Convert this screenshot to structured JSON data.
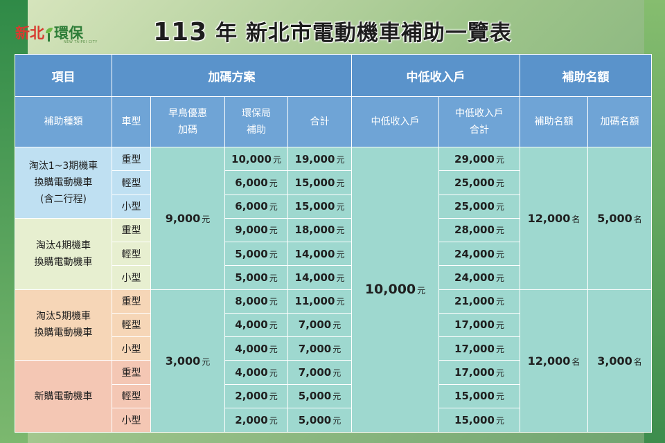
{
  "logo": {
    "part1": "新北",
    "part2": "環保",
    "tagline": "NEW TAIPEI CITY"
  },
  "title": {
    "year": "113",
    "year_suffix": "年",
    "text": "新北市電動機車補助一覽表"
  },
  "header_row1": [
    "項目",
    "加碼方案",
    "中低收入戶",
    "補助名額"
  ],
  "header_row2": {
    "subsidy_type": "補助種類",
    "vehicle_type": "車型",
    "early_bird": [
      "早鳥優惠",
      "加碼"
    ],
    "epb": [
      "環保局",
      "補助"
    ],
    "total": "合計",
    "low_income": "中低收入戶",
    "low_income_total": [
      "中低收入戶",
      "合計"
    ],
    "quota": "補助名額",
    "extra_quota": "加碼名額"
  },
  "units": {
    "yuan": "元",
    "ming": "名"
  },
  "groups": [
    {
      "name_lines": [
        "淘汰1~3期機車",
        "換購電動機車",
        "(含二行程)"
      ]
    },
    {
      "name_lines": [
        "淘汰4期機車",
        "換購電動機車"
      ]
    },
    {
      "name_lines": [
        "淘汰5期機車",
        "換購電動機車"
      ]
    },
    {
      "name_lines": [
        "新購電動機車"
      ]
    }
  ],
  "vehicle_types": [
    "重型",
    "輕型",
    "小型"
  ],
  "early_bird_values": [
    "9,000",
    "3,000"
  ],
  "rows": [
    {
      "epb": "10,000",
      "total": "19,000",
      "li_total": "29,000"
    },
    {
      "epb": "6,000",
      "total": "15,000",
      "li_total": "25,000"
    },
    {
      "epb": "6,000",
      "total": "15,000",
      "li_total": "25,000"
    },
    {
      "epb": "9,000",
      "total": "18,000",
      "li_total": "28,000"
    },
    {
      "epb": "5,000",
      "total": "14,000",
      "li_total": "24,000"
    },
    {
      "epb": "5,000",
      "total": "14,000",
      "li_total": "24,000"
    },
    {
      "epb": "8,000",
      "total": "11,000",
      "li_total": "21,000"
    },
    {
      "epb": "4,000",
      "total": "7,000",
      "li_total": "17,000"
    },
    {
      "epb": "4,000",
      "total": "7,000",
      "li_total": "17,000"
    },
    {
      "epb": "4,000",
      "total": "7,000",
      "li_total": "17,000"
    },
    {
      "epb": "2,000",
      "total": "5,000",
      "li_total": "15,000"
    },
    {
      "epb": "2,000",
      "total": "5,000",
      "li_total": "15,000"
    }
  ],
  "low_income_value": "10,000",
  "quota_values": [
    "12,000",
    "12,000"
  ],
  "extra_quota_values": [
    "5,000",
    "3,000"
  ]
}
